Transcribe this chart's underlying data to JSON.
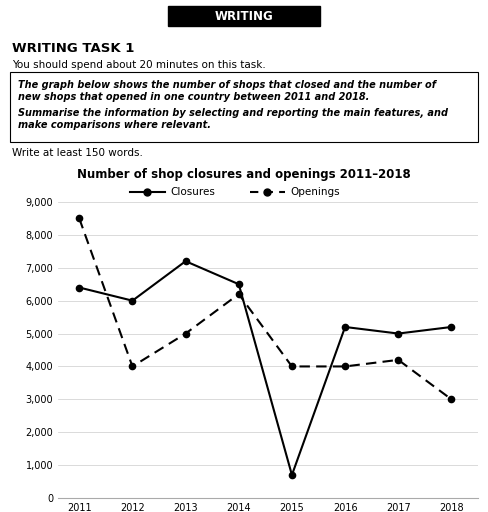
{
  "title": "Number of shop closures and openings 2011–2018",
  "years": [
    2011,
    2012,
    2013,
    2014,
    2015,
    2016,
    2017,
    2018
  ],
  "closures": [
    6400,
    6000,
    7200,
    6500,
    700,
    5200,
    5000,
    5200
  ],
  "openings": [
    8500,
    4000,
    5000,
    6200,
    4000,
    4000,
    4200,
    3000
  ],
  "ylim": [
    0,
    9000
  ],
  "yticks": [
    0,
    1000,
    2000,
    3000,
    4000,
    5000,
    6000,
    7000,
    8000,
    9000
  ],
  "ytick_labels": [
    "0",
    "1,000",
    "2,000",
    "3,000",
    "4,000",
    "5,000",
    "6,000",
    "7,000",
    "8,000",
    "9,000"
  ],
  "background_color": "#ffffff",
  "header_text": "WRITING",
  "task_title": "WRITING TASK 1",
  "subtitle1": "You should spend about 20 minutes on this task.",
  "box_line1": "The graph below shows the number of shops that closed and the number of",
  "box_line2": "new shops that opened in one country between 2011 and 2018.",
  "box_line3": "Summarise the information by selecting and reporting the main features, and",
  "box_line4": "make comparisons where relevant.",
  "footer_text": "Write at least 150 words.",
  "legend_closures": "Closures",
  "legend_openings": "Openings"
}
